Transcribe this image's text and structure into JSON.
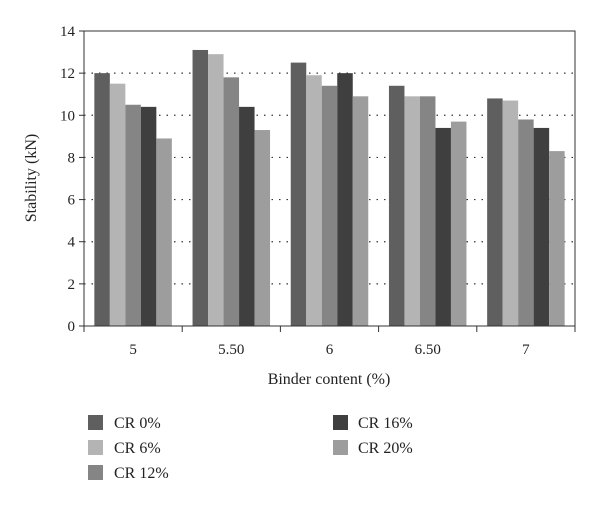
{
  "chart_data": {
    "type": "bar",
    "title": "",
    "xlabel": "Binder content (%)",
    "ylabel": "Stability (kN)",
    "categories": [
      "5",
      "5.50",
      "6",
      "6.50",
      "7"
    ],
    "ylim": [
      0,
      14
    ],
    "yticks": [
      0,
      2,
      4,
      6,
      8,
      10,
      12,
      14
    ],
    "grid": "horizontal dotted",
    "legend_position": "bottom",
    "series": [
      {
        "name": "CR 0%",
        "color": "#5f5f5f",
        "values": [
          12.0,
          13.1,
          12.5,
          11.4,
          10.8
        ]
      },
      {
        "name": "CR 6%",
        "color": "#b4b4b4",
        "values": [
          11.5,
          12.9,
          11.9,
          10.9,
          10.7
        ]
      },
      {
        "name": "CR 12%",
        "color": "#858585",
        "values": [
          10.5,
          11.8,
          11.4,
          10.9,
          9.8
        ]
      },
      {
        "name": "CR 16%",
        "color": "#3f3f3f",
        "values": [
          10.4,
          10.4,
          12.0,
          9.4,
          9.4
        ]
      },
      {
        "name": "CR 20%",
        "color": "#9d9d9d",
        "values": [
          8.9,
          9.3,
          10.9,
          9.7,
          8.3
        ]
      }
    ]
  }
}
